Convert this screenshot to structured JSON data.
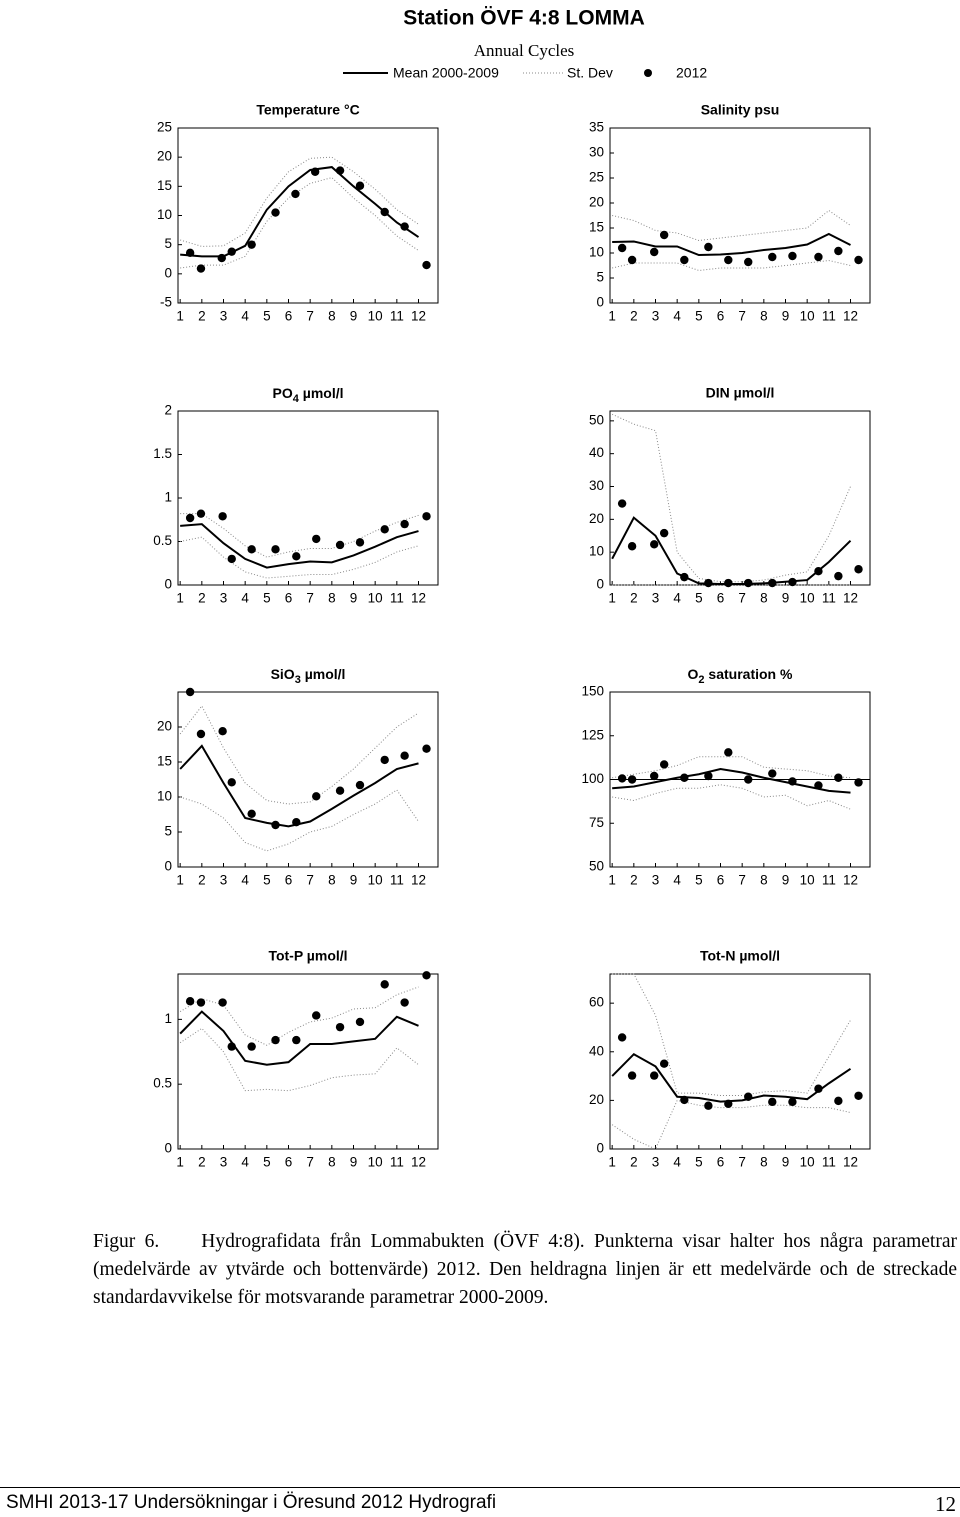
{
  "header": {
    "title": "Station ÖVF 4:8  LOMMA",
    "subtitle": "Annual Cycles",
    "legend": {
      "mean": "Mean 2000-2009",
      "std": "St. Dev",
      "points": "2012"
    }
  },
  "chart_data": [
    {
      "type": "line",
      "title": "Temperature °C",
      "xlim": [
        0.9,
        12.9
      ],
      "xticks": [
        1,
        2,
        3,
        4,
        5,
        6,
        7,
        8,
        9,
        10,
        11,
        12
      ],
      "ylim": [
        -5,
        25
      ],
      "yticks": [
        -5,
        0,
        5,
        10,
        15,
        20,
        25
      ],
      "x": [
        1,
        2,
        3,
        4,
        5,
        6,
        7,
        8,
        9,
        10,
        11,
        12
      ],
      "mean": [
        3.3,
        3.0,
        3.0,
        4.8,
        11,
        15,
        17.8,
        18.3,
        15,
        12,
        8.8,
        6.3
      ],
      "std_upper": [
        5.8,
        4.7,
        4.8,
        7,
        13,
        17.5,
        19.8,
        20,
        17.5,
        14.5,
        11,
        8.5
      ],
      "std_lower": [
        1,
        1.5,
        1.5,
        3,
        9,
        13,
        15.5,
        16.5,
        13,
        10,
        6.5,
        4
      ],
      "points_x": [
        1.46,
        1.96,
        2.92,
        3.38,
        4.3,
        5.4,
        6.32,
        7.23,
        8.38,
        9.3,
        10.44,
        11.36,
        12.37
      ],
      "points_y": [
        3.6,
        0.9,
        2.7,
        3.8,
        5.0,
        10.5,
        13.7,
        17.5,
        17.7,
        15.1,
        10.6,
        8.1,
        1.5
      ]
    },
    {
      "type": "line",
      "title": "Salinity psu",
      "xlim": [
        0.9,
        12.9
      ],
      "xticks": [
        1,
        2,
        3,
        4,
        5,
        6,
        7,
        8,
        9,
        10,
        11,
        12
      ],
      "ylim": [
        0,
        35
      ],
      "yticks": [
        0,
        5,
        10,
        15,
        20,
        25,
        30,
        35
      ],
      "x": [
        1,
        2,
        3,
        4,
        5,
        6,
        7,
        8,
        9,
        10,
        11,
        12
      ],
      "mean": [
        12.2,
        12.3,
        11.3,
        11.3,
        9.6,
        9.7,
        10,
        10.6,
        11,
        11.7,
        13.8,
        11.6
      ],
      "std_upper": [
        17.5,
        16.5,
        14.5,
        14,
        12.5,
        13,
        13.5,
        14,
        14.5,
        15,
        18.5,
        15.5
      ],
      "std_lower": [
        7,
        8,
        8,
        8,
        6.5,
        7,
        7,
        7,
        7.5,
        8,
        8.5,
        7.5
      ],
      "points_x": [
        1.46,
        1.92,
        2.94,
        3.4,
        4.33,
        5.44,
        6.36,
        7.28,
        8.39,
        9.32,
        10.52,
        11.44,
        12.37
      ],
      "points_y": [
        11,
        8.6,
        10.2,
        13.6,
        8.6,
        11.2,
        8.6,
        8.2,
        9.2,
        9.4,
        9.2,
        10.4,
        8.6
      ]
    },
    {
      "type": "line",
      "title": {
        "main": "PO",
        "sub": "4",
        "rest": " µmol/l"
      },
      "xlim": [
        0.9,
        12.9
      ],
      "xticks": [
        1,
        2,
        3,
        4,
        5,
        6,
        7,
        8,
        9,
        10,
        11,
        12
      ],
      "ylim": [
        0,
        2
      ],
      "yticks": [
        0,
        0.5,
        1,
        1.5,
        2
      ],
      "x": [
        1,
        2,
        3,
        4,
        5,
        6,
        7,
        8,
        9,
        10,
        11,
        12
      ],
      "mean": [
        0.68,
        0.7,
        0.48,
        0.3,
        0.2,
        0.24,
        0.27,
        0.26,
        0.34,
        0.44,
        0.55,
        0.62
      ],
      "std_upper": [
        0.82,
        0.82,
        0.65,
        0.45,
        0.32,
        0.38,
        0.42,
        0.42,
        0.5,
        0.62,
        0.72,
        0.8
      ],
      "std_lower": [
        0.5,
        0.55,
        0.32,
        0.15,
        0.08,
        0.1,
        0.12,
        0.12,
        0.18,
        0.26,
        0.38,
        0.45
      ],
      "points_x": [
        1.46,
        1.96,
        2.96,
        3.38,
        4.3,
        5.4,
        6.36,
        7.28,
        8.38,
        9.3,
        10.44,
        11.36,
        12.37
      ],
      "points_y": [
        0.77,
        0.82,
        0.79,
        0.3,
        0.41,
        0.41,
        0.33,
        0.53,
        0.46,
        0.49,
        0.64,
        0.7,
        0.79
      ]
    },
    {
      "type": "line",
      "title": "DIN µmol/l",
      "xlim": [
        0.9,
        12.9
      ],
      "xticks": [
        1,
        2,
        3,
        4,
        5,
        6,
        7,
        8,
        9,
        10,
        11,
        12
      ],
      "ylim": [
        0,
        53
      ],
      "yticks": [
        0,
        10,
        20,
        30,
        40,
        50
      ],
      "x": [
        1,
        2,
        3,
        4,
        5,
        6,
        7,
        8,
        9,
        10,
        11,
        12
      ],
      "mean": [
        8,
        20.5,
        15,
        3.5,
        0.5,
        0.3,
        0.3,
        0.5,
        1,
        1.5,
        7,
        13.5
      ],
      "std_upper": [
        52,
        49,
        47,
        10,
        2,
        1,
        1,
        1.5,
        3,
        4,
        15,
        30
      ],
      "std_lower": [
        0,
        0,
        0,
        0,
        0,
        0,
        0,
        0,
        0,
        0,
        0,
        0
      ],
      "points_x": [
        1.46,
        1.92,
        2.94,
        3.4,
        4.33,
        5.44,
        6.36,
        7.28,
        8.39,
        9.32,
        10.52,
        11.44,
        12.37
      ],
      "points_y": [
        24.8,
        11.8,
        12.4,
        15.8,
        2.4,
        0.6,
        0.6,
        0.6,
        0.6,
        0.9,
        4.2,
        2.7,
        4.8
      ]
    },
    {
      "type": "line",
      "title": {
        "main": "SiO",
        "sub": "3",
        "rest": " µmol/l"
      },
      "xlim": [
        0.9,
        12.9
      ],
      "xticks": [
        1,
        2,
        3,
        4,
        5,
        6,
        7,
        8,
        9,
        10,
        11,
        12
      ],
      "ylim": [
        0,
        25
      ],
      "yticks": [
        0,
        5,
        10,
        15,
        20
      ],
      "x": [
        1,
        2,
        3,
        4,
        5,
        6,
        7,
        8,
        9,
        10,
        11,
        12
      ],
      "mean": [
        14,
        17.3,
        12,
        7,
        6.3,
        5.8,
        6.5,
        8.3,
        10.2,
        12,
        14,
        14.8
      ],
      "std_upper": [
        19,
        23,
        17,
        12,
        9.5,
        9,
        9.3,
        11.5,
        14,
        17,
        20,
        22
      ],
      "std_lower": [
        10,
        9,
        7,
        3.5,
        2.3,
        3.3,
        5,
        5.8,
        7.5,
        9,
        11,
        6.5
      ],
      "points_x": [
        1.46,
        1.96,
        2.96,
        3.38,
        4.3,
        5.4,
        6.36,
        7.28,
        8.38,
        9.3,
        10.44,
        11.36,
        12.37
      ],
      "points_y": [
        25,
        19,
        19.4,
        12.1,
        7.6,
        6,
        6.4,
        10.1,
        10.9,
        11.7,
        15.3,
        15.9,
        16.9
      ]
    },
    {
      "type": "line",
      "title": {
        "main": "O",
        "sub": "2",
        "rest": " saturation %"
      },
      "xlim": [
        0.9,
        12.9
      ],
      "xticks": [
        1,
        2,
        3,
        4,
        5,
        6,
        7,
        8,
        9,
        10,
        11,
        12
      ],
      "ylim": [
        50,
        150
      ],
      "yticks": [
        50,
        75,
        100,
        125,
        150
      ],
      "x": [
        1,
        2,
        3,
        4,
        5,
        6,
        7,
        8,
        9,
        10,
        11,
        12
      ],
      "hline": 100,
      "mean": [
        95,
        96,
        98.5,
        101,
        103,
        106,
        104,
        101,
        98.5,
        96,
        93.5,
        92.5
      ],
      "std_upper": [
        101,
        103,
        105,
        108,
        113,
        113,
        113,
        107,
        106,
        105,
        102,
        101
      ],
      "std_lower": [
        90,
        88,
        92,
        95,
        95,
        97,
        95,
        90,
        91,
        85,
        88,
        83
      ],
      "points_x": [
        1.46,
        1.92,
        2.94,
        3.4,
        4.33,
        5.44,
        6.36,
        7.28,
        8.39,
        9.32,
        10.52,
        11.44,
        12.37
      ],
      "points_y": [
        100.6,
        100,
        102,
        108.6,
        101,
        102,
        115.5,
        100,
        103.4,
        98.9,
        96.6,
        101,
        98.3
      ]
    },
    {
      "type": "line",
      "title": "Tot-P µmol/l",
      "xlim": [
        0.9,
        12.9
      ],
      "xticks": [
        1,
        2,
        3,
        4,
        5,
        6,
        7,
        8,
        9,
        10,
        11,
        12
      ],
      "ylim": [
        0,
        1.35
      ],
      "yticks": [
        0,
        0.5,
        1
      ],
      "x": [
        1,
        2,
        3,
        4,
        5,
        6,
        7,
        8,
        9,
        10,
        11,
        12
      ],
      "mean": [
        0.89,
        1.06,
        0.91,
        0.68,
        0.65,
        0.67,
        0.81,
        0.81,
        0.83,
        0.85,
        1.02,
        0.95
      ],
      "std_upper": [
        1.06,
        1.16,
        1.11,
        0.88,
        0.8,
        0.9,
        0.98,
        1.01,
        1.08,
        1.09,
        1.19,
        1.25
      ],
      "std_lower": [
        0.82,
        0.93,
        0.75,
        0.45,
        0.46,
        0.45,
        0.49,
        0.55,
        0.57,
        0.58,
        0.78,
        0.65
      ],
      "points_x": [
        1.46,
        1.96,
        2.96,
        3.38,
        4.3,
        5.4,
        6.36,
        7.28,
        8.38,
        9.3,
        10.44,
        11.36,
        12.37
      ],
      "points_y": [
        1.14,
        1.13,
        1.13,
        0.79,
        0.79,
        0.84,
        0.84,
        1.03,
        0.94,
        0.98,
        1.27,
        1.13,
        1.34
      ]
    },
    {
      "type": "line",
      "title": "Tot-N µmol/l",
      "xlim": [
        0.9,
        12.9
      ],
      "xticks": [
        1,
        2,
        3,
        4,
        5,
        6,
        7,
        8,
        9,
        10,
        11,
        12
      ],
      "ylim": [
        0,
        72
      ],
      "yticks": [
        0,
        20,
        40,
        60
      ],
      "x": [
        1,
        2,
        3,
        4,
        5,
        6,
        7,
        8,
        9,
        10,
        11,
        12
      ],
      "mean": [
        30,
        39,
        34,
        21.5,
        21,
        19.5,
        20,
        22,
        21.5,
        20.5,
        27,
        33
      ],
      "std_upper": [
        72,
        72,
        55,
        23,
        23,
        22,
        22,
        23.5,
        24,
        23,
        38,
        53
      ],
      "std_lower": [
        10,
        4,
        0,
        20,
        18,
        17,
        17,
        18,
        18,
        17,
        17,
        15
      ],
      "points_x": [
        1.46,
        1.92,
        2.94,
        3.4,
        4.33,
        5.44,
        6.36,
        7.28,
        8.39,
        9.32,
        10.52,
        11.44,
        12.37
      ],
      "points_y": [
        45.9,
        30.2,
        30.2,
        35.1,
        20.2,
        17.8,
        18.6,
        21.5,
        19.4,
        19.4,
        24.8,
        19.8,
        21.9
      ]
    }
  ],
  "caption": {
    "label": "Figur 6.",
    "text": "Hydrografidata från Lommabukten (ÖVF 4:8). Punkterna visar halter hos några parametrar (medelvärde av ytvärde och bottenvärde) 2012. Den heldragna linjen är ett medelvärde och de streckade standardavvikelse för motsvarande parametrar 2000-2009."
  },
  "footer": {
    "left": "SMHI 2013-17 Undersökningar i Öresund 2012 Hydrografi",
    "page": "12"
  }
}
